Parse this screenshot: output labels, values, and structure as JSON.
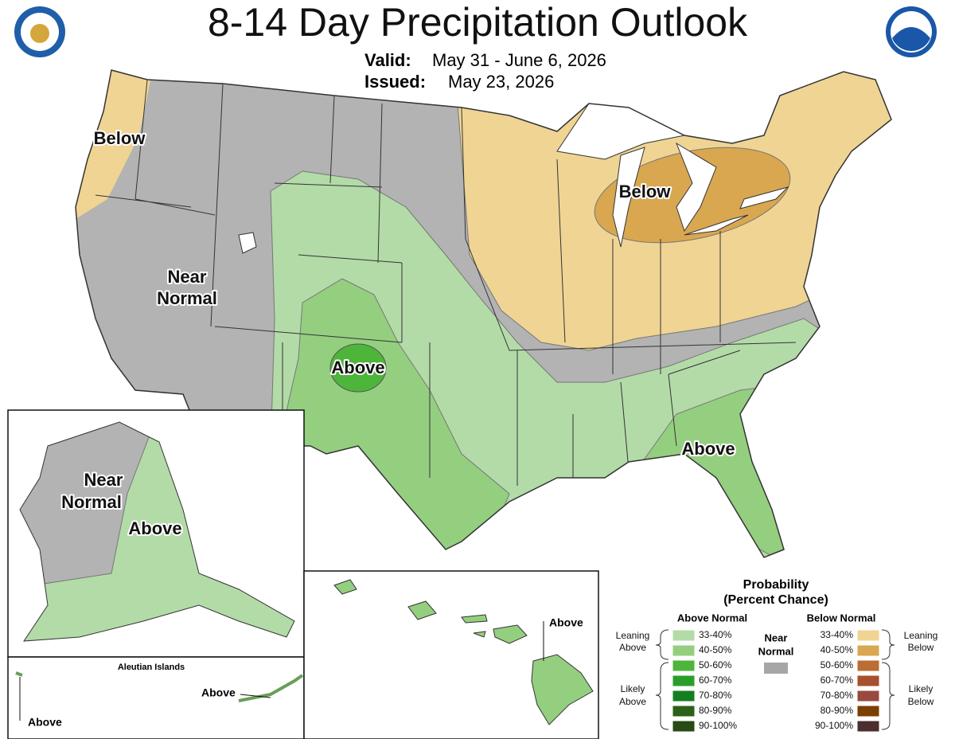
{
  "title": "8-14 Day Precipitation Outlook",
  "valid": {
    "label": "Valid:",
    "value": "May 31 - June 6, 2026"
  },
  "issued": {
    "label": "Issued:",
    "value": "May 23, 2026"
  },
  "conus_labels": [
    {
      "lines": [
        "Below"
      ]
    },
    {
      "lines": [
        "Near",
        "Normal"
      ]
    },
    {
      "lines": [
        "Below"
      ]
    },
    {
      "lines": [
        "Above"
      ]
    },
    {
      "lines": [
        "Above"
      ]
    }
  ],
  "alaska_labels": [
    {
      "lines": [
        "Near",
        "Normal"
      ]
    },
    {
      "lines": [
        "Above"
      ]
    }
  ],
  "aleutian": {
    "title": "Aleutian Islands",
    "labels": [
      "Above",
      "Above"
    ]
  },
  "hawaii_label": "Above",
  "legend": {
    "title": "Probability",
    "subtitle": "(Percent Chance)",
    "above": {
      "heading": "Above Normal",
      "items": [
        {
          "label": "33-40%",
          "color": "#b3dba8"
        },
        {
          "label": "40-50%",
          "color": "#94cf80"
        },
        {
          "label": "50-60%",
          "color": "#4db53a"
        },
        {
          "label": "60-70%",
          "color": "#2a9e2a"
        },
        {
          "label": "70-80%",
          "color": "#157f1f"
        },
        {
          "label": "80-90%",
          "color": "#2b6119"
        },
        {
          "label": "90-100%",
          "color": "#284a14"
        }
      ]
    },
    "near": {
      "heading": [
        "Near",
        "Normal"
      ],
      "color": "#a6a6a6"
    },
    "below": {
      "heading": "Below Normal",
      "items": [
        {
          "label": "33-40%",
          "color": "#f0d493"
        },
        {
          "label": "40-50%",
          "color": "#d8a750"
        },
        {
          "label": "50-60%",
          "color": "#bb6d33"
        },
        {
          "label": "60-70%",
          "color": "#a6502d"
        },
        {
          "label": "70-80%",
          "color": "#984a3e"
        },
        {
          "label": "80-90%",
          "color": "#7b3f00"
        },
        {
          "label": "90-100%",
          "color": "#4b2e2e"
        }
      ]
    },
    "brackets": {
      "leaning_above": [
        "Leaning",
        "Above"
      ],
      "likely_above": [
        "Likely",
        "Above"
      ],
      "leaning_below": [
        "Leaning",
        "Below"
      ],
      "likely_below": [
        "Likely",
        "Below"
      ]
    }
  }
}
